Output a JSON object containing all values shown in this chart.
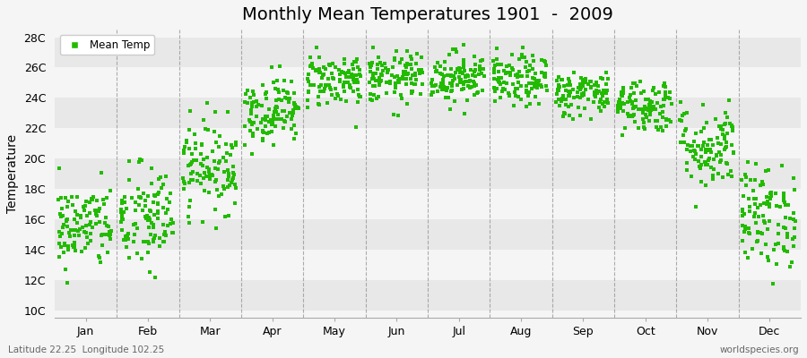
{
  "title": "Monthly Mean Temperatures 1901  -  2009",
  "ylabel": "Temperature",
  "xlabel": "",
  "y_tick_labels": [
    "10C",
    "12C",
    "14C",
    "16C",
    "18C",
    "20C",
    "22C",
    "24C",
    "26C",
    "28C"
  ],
  "y_tick_values": [
    10,
    12,
    14,
    16,
    18,
    20,
    22,
    24,
    26,
    28
  ],
  "ylim": [
    9.5,
    28.5
  ],
  "month_labels": [
    "Jan",
    "Feb",
    "Mar",
    "Apr",
    "May",
    "Jun",
    "Jul",
    "Aug",
    "Sep",
    "Oct",
    "Nov",
    "Dec"
  ],
  "dot_color": "#22bb00",
  "legend_label": "Mean Temp",
  "background_color": "#f5f5f5",
  "stripe_colors": [
    "#e8e8e8",
    "#f5f5f5"
  ],
  "title_fontsize": 14,
  "axis_label_fontsize": 10,
  "tick_fontsize": 9,
  "footer_left": "Latitude 22.25  Longitude 102.25",
  "footer_right": "worldspecies.org",
  "dot_size": 9,
  "num_years": 109,
  "seed": 42,
  "monthly_means": [
    15.5,
    16.0,
    19.5,
    23.2,
    25.2,
    25.3,
    25.4,
    25.1,
    24.3,
    23.5,
    20.8,
    16.2
  ],
  "monthly_stds": [
    1.4,
    1.8,
    1.5,
    1.1,
    0.9,
    0.85,
    0.85,
    0.85,
    0.75,
    0.9,
    1.4,
    1.7
  ]
}
